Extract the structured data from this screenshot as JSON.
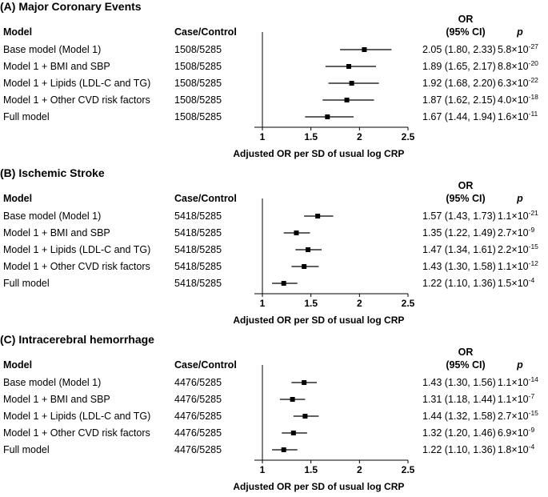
{
  "chart_data": [
    {
      "type": "forest",
      "title": "(A) Major Coronary Events",
      "headers": {
        "model": "Model",
        "case_control": "Case/Control",
        "or_line1": "OR",
        "or_line2": "(95% CI)",
        "p": "p"
      },
      "xlabel": "Adjusted OR per SD of usual log CRP",
      "xlim": [
        1,
        2.5
      ],
      "xticks": [
        1,
        1.5,
        2,
        2.5
      ],
      "xtick_labels": [
        "1",
        "1.5",
        "2",
        "2.5"
      ],
      "rows": [
        {
          "model": "Base model (Model 1)",
          "case_control": "1508/5285",
          "or": 2.05,
          "lo": 1.8,
          "hi": 2.33,
          "or_text": "2.05 (1.80, 2.33)",
          "p_mant": "5.8",
          "p_exp": "-27"
        },
        {
          "model": "Model 1 + BMI and SBP",
          "case_control": "1508/5285",
          "or": 1.89,
          "lo": 1.65,
          "hi": 2.17,
          "or_text": "1.89 (1.65, 2.17)",
          "p_mant": "8.8",
          "p_exp": "-20"
        },
        {
          "model": "Model 1 + Lipids (LDL-C and TG)",
          "case_control": "1508/5285",
          "or": 1.92,
          "lo": 1.68,
          "hi": 2.2,
          "or_text": "1.92 (1.68, 2.20)",
          "p_mant": "6.3",
          "p_exp": "-22"
        },
        {
          "model": "Model 1 + Other CVD risk factors",
          "case_control": "1508/5285",
          "or": 1.87,
          "lo": 1.62,
          "hi": 2.15,
          "or_text": "1.87 (1.62, 2.15)",
          "p_mant": "4.0",
          "p_exp": "-18"
        },
        {
          "model": "Full model",
          "case_control": "1508/5285",
          "or": 1.67,
          "lo": 1.44,
          "hi": 1.94,
          "or_text": "1.67 (1.44, 1.94)",
          "p_mant": "1.6",
          "p_exp": "-11"
        }
      ]
    },
    {
      "type": "forest",
      "title": "(B) Ischemic Stroke",
      "headers": {
        "model": "Model",
        "case_control": "Case/Control",
        "or_line1": "OR",
        "or_line2": "(95% CI)",
        "p": "p"
      },
      "xlabel": "Adjusted OR per SD of usual log CRP",
      "xlim": [
        1,
        2.5
      ],
      "xticks": [
        1,
        1.5,
        2,
        2.5
      ],
      "xtick_labels": [
        "1",
        "1.5",
        "2",
        "2.5"
      ],
      "rows": [
        {
          "model": "Base model (Model 1)",
          "case_control": "5418/5285",
          "or": 1.57,
          "lo": 1.43,
          "hi": 1.73,
          "or_text": "1.57 (1.43, 1.73)",
          "p_mant": "1.1",
          "p_exp": "-21"
        },
        {
          "model": "Model 1 + BMI and SBP",
          "case_control": "5418/5285",
          "or": 1.35,
          "lo": 1.22,
          "hi": 1.49,
          "or_text": "1.35 (1.22, 1.49)",
          "p_mant": "2.7",
          "p_exp": "-9"
        },
        {
          "model": "Model 1 + Lipids (LDL-C and TG)",
          "case_control": "5418/5285",
          "or": 1.47,
          "lo": 1.34,
          "hi": 1.61,
          "or_text": "1.47 (1.34, 1.61)",
          "p_mant": "2.2",
          "p_exp": "-15"
        },
        {
          "model": "Model 1 + Other CVD risk factors",
          "case_control": "5418/5285",
          "or": 1.43,
          "lo": 1.3,
          "hi": 1.58,
          "or_text": "1.43 (1.30, 1.58)",
          "p_mant": "1.1",
          "p_exp": "-12"
        },
        {
          "model": "Full model",
          "case_control": "5418/5285",
          "or": 1.22,
          "lo": 1.1,
          "hi": 1.36,
          "or_text": "1.22 (1.10, 1.36)",
          "p_mant": "1.5",
          "p_exp": "-4"
        }
      ]
    },
    {
      "type": "forest",
      "title": "(C) Intracerebral hemorrhage",
      "headers": {
        "model": "Model",
        "case_control": "Case/Control",
        "or_line1": "OR",
        "or_line2": "(95% CI)",
        "p": "p"
      },
      "xlabel": "Adjusted OR per SD of usual log CRP",
      "xlim": [
        1,
        2.5
      ],
      "xticks": [
        1,
        1.5,
        2,
        2.5
      ],
      "xtick_labels": [
        "1",
        "1.5",
        "2",
        "2.5"
      ],
      "rows": [
        {
          "model": "Base model (Model 1)",
          "case_control": "4476/5285",
          "or": 1.43,
          "lo": 1.3,
          "hi": 1.56,
          "or_text": "1.43 (1.30, 1.56)",
          "p_mant": "1.1",
          "p_exp": "-14"
        },
        {
          "model": "Model 1 + BMI and SBP",
          "case_control": "4476/5285",
          "or": 1.31,
          "lo": 1.18,
          "hi": 1.44,
          "or_text": "1.31 (1.18, 1.44)",
          "p_mant": "1.1",
          "p_exp": "-7"
        },
        {
          "model": "Model 1 + Lipids (LDL-C and TG)",
          "case_control": "4476/5285",
          "or": 1.44,
          "lo": 1.32,
          "hi": 1.58,
          "or_text": "1.44 (1.32, 1.58)",
          "p_mant": "2.7",
          "p_exp": "-15"
        },
        {
          "model": "Model 1 + Other CVD risk factors",
          "case_control": "4476/5285",
          "or": 1.32,
          "lo": 1.2,
          "hi": 1.46,
          "or_text": "1.32 (1.20, 1.46)",
          "p_mant": "6.9",
          "p_exp": "-9"
        },
        {
          "model": "Full model",
          "case_control": "4476/5285",
          "or": 1.22,
          "lo": 1.1,
          "hi": 1.36,
          "or_text": "1.22 (1.10, 1.36)",
          "p_mant": "1.8",
          "p_exp": "-4"
        }
      ]
    }
  ]
}
